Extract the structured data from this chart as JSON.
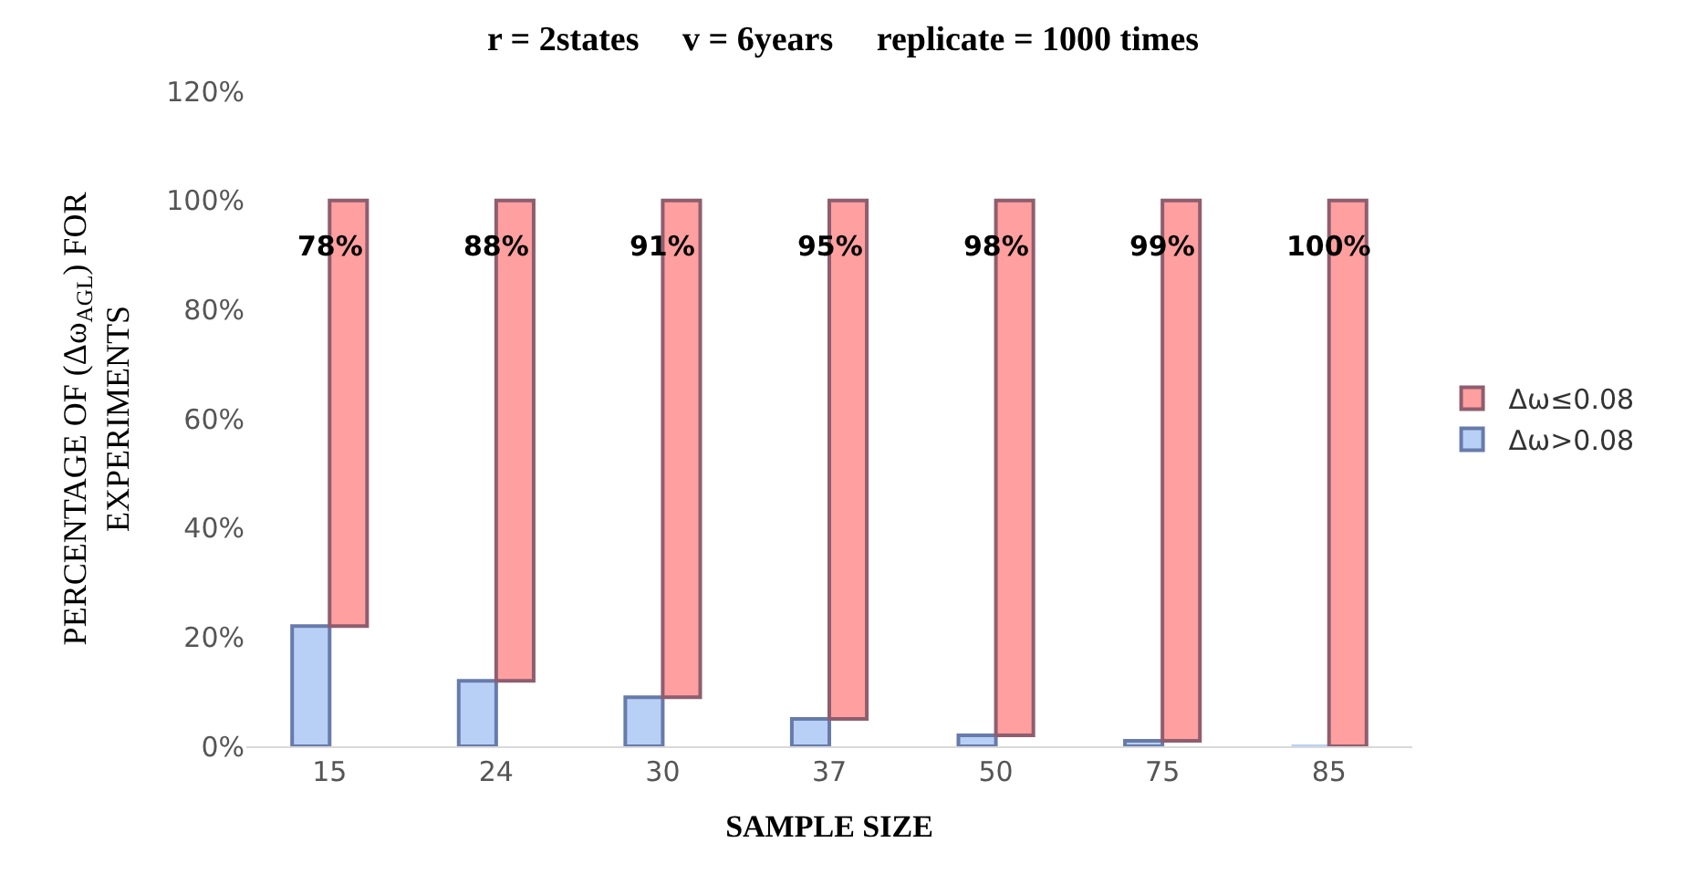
{
  "chart_data": {
    "type": "bar",
    "title": "r = 2states     v = 6years     replicate = 1000 times",
    "xlabel": "SAMPLE SIZE",
    "ylabel": "PERCENTAGE OF (Δω$_{AGL}$) FOR\nEXPERIMENTS",
    "categories": [
      "15",
      "24",
      "30",
      "37",
      "50",
      "75",
      "85"
    ],
    "series": [
      {
        "name": "Δω>0.08",
        "color": "#b8d0f5",
        "values": [
          22,
          12,
          9,
          5,
          2,
          1,
          0
        ]
      },
      {
        "name": "Δω≤0.08",
        "color": "#ff9f9f",
        "values": [
          78,
          88,
          91,
          95,
          98,
          99,
          100
        ],
        "base": [
          22,
          12,
          9,
          5,
          2,
          1,
          0
        ],
        "value_labels": [
          "78%",
          "88%",
          "91%",
          "95%",
          "98%",
          "99%",
          "100%"
        ]
      }
    ],
    "ylim": [
      0,
      120
    ],
    "yticks": [
      {
        "value": 0,
        "label": "0%"
      },
      {
        "value": 20,
        "label": "20%"
      },
      {
        "value": 40,
        "label": "40%"
      },
      {
        "value": 60,
        "label": "60%"
      },
      {
        "value": 80,
        "label": "80%"
      },
      {
        "value": 100,
        "label": "100%"
      },
      {
        "value": 120,
        "label": "120%"
      }
    ],
    "legend": "right",
    "grid": false
  }
}
